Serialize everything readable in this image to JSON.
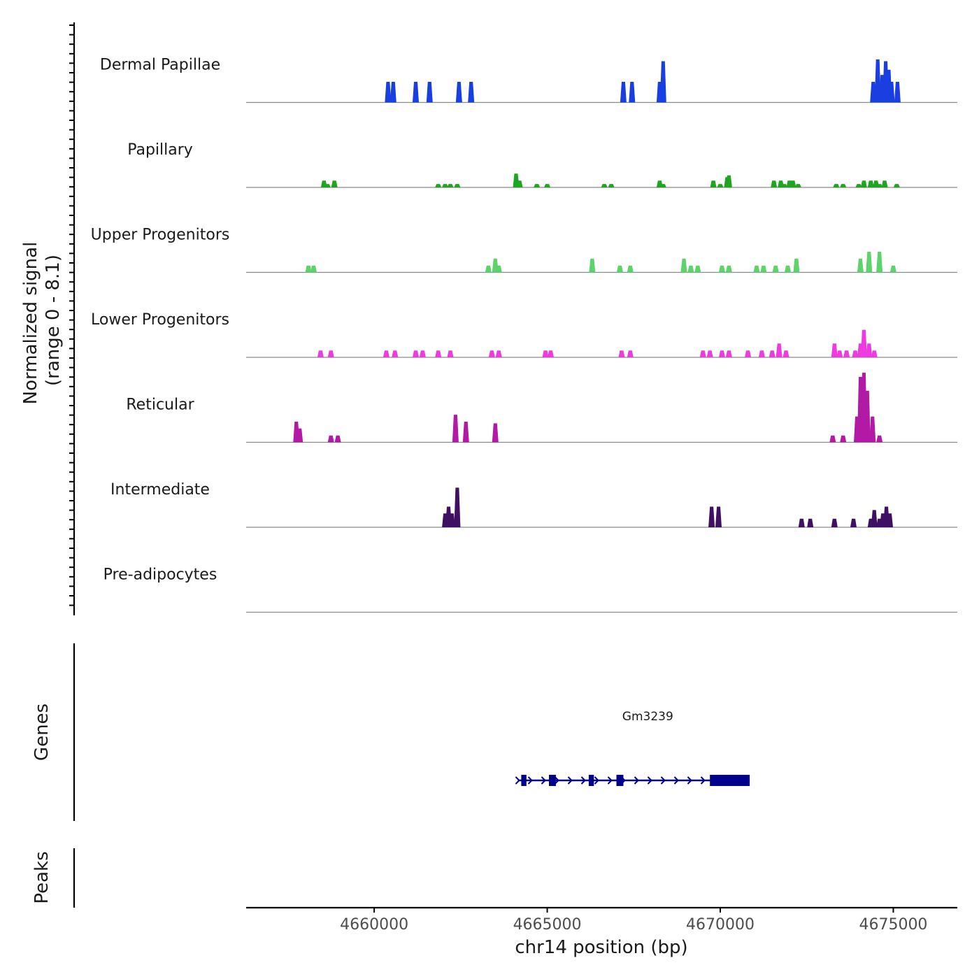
{
  "chart_data": {
    "type": "area",
    "title": "",
    "ylabel": "Normalized signal",
    "ylabel_range": "(range 0 - 8.1)",
    "ylim": [
      0,
      8.1
    ],
    "xlabel": "chr14 position (bp)",
    "xlim": [
      4656300,
      4676850
    ],
    "x_ticks": [
      4660000,
      4665000,
      4670000,
      4675000
    ],
    "x_tick_labels": [
      "4660000",
      "4665000",
      "4670000",
      "4675000"
    ],
    "series": [
      {
        "name": "Dermal Papillae",
        "color": "#1a3fe0",
        "peaks": [
          {
            "x": 4660400,
            "y": 2.4
          },
          {
            "x": 4660550,
            "y": 2.4
          },
          {
            "x": 4661200,
            "y": 2.4
          },
          {
            "x": 4661600,
            "y": 2.4
          },
          {
            "x": 4662450,
            "y": 2.4
          },
          {
            "x": 4662800,
            "y": 2.4
          },
          {
            "x": 4667200,
            "y": 2.4
          },
          {
            "x": 4667450,
            "y": 2.4
          },
          {
            "x": 4668250,
            "y": 2.4
          },
          {
            "x": 4668350,
            "y": 4.8
          },
          {
            "x": 4674420,
            "y": 2.4
          },
          {
            "x": 4674550,
            "y": 5.0
          },
          {
            "x": 4674680,
            "y": 3.2
          },
          {
            "x": 4674780,
            "y": 4.8
          },
          {
            "x": 4674870,
            "y": 3.8
          },
          {
            "x": 4674950,
            "y": 2.4
          },
          {
            "x": 4675120,
            "y": 2.4
          }
        ]
      },
      {
        "name": "Papillary",
        "color": "#1fa51f",
        "peaks": [
          {
            "x": 4658550,
            "y": 0.8
          },
          {
            "x": 4658650,
            "y": 0.4
          },
          {
            "x": 4658850,
            "y": 0.8
          },
          {
            "x": 4661850,
            "y": 0.4
          },
          {
            "x": 4662050,
            "y": 0.4
          },
          {
            "x": 4662200,
            "y": 0.4
          },
          {
            "x": 4662400,
            "y": 0.4
          },
          {
            "x": 4664100,
            "y": 1.6
          },
          {
            "x": 4664200,
            "y": 0.8
          },
          {
            "x": 4664700,
            "y": 0.4
          },
          {
            "x": 4665000,
            "y": 0.4
          },
          {
            "x": 4666650,
            "y": 0.4
          },
          {
            "x": 4666850,
            "y": 0.4
          },
          {
            "x": 4668250,
            "y": 0.8
          },
          {
            "x": 4668350,
            "y": 0.4
          },
          {
            "x": 4669800,
            "y": 0.8
          },
          {
            "x": 4670000,
            "y": 0.4
          },
          {
            "x": 4670200,
            "y": 1.2
          },
          {
            "x": 4670250,
            "y": 1.4
          },
          {
            "x": 4671550,
            "y": 0.8
          },
          {
            "x": 4671750,
            "y": 0.8
          },
          {
            "x": 4671850,
            "y": 0.4
          },
          {
            "x": 4672000,
            "y": 0.8
          },
          {
            "x": 4672100,
            "y": 0.8
          },
          {
            "x": 4672250,
            "y": 0.4
          },
          {
            "x": 4673350,
            "y": 0.4
          },
          {
            "x": 4673550,
            "y": 0.4
          },
          {
            "x": 4674000,
            "y": 0.4
          },
          {
            "x": 4674150,
            "y": 0.8
          },
          {
            "x": 4674350,
            "y": 0.8
          },
          {
            "x": 4674500,
            "y": 0.8
          },
          {
            "x": 4674600,
            "y": 0.4
          },
          {
            "x": 4674750,
            "y": 0.8
          },
          {
            "x": 4675100,
            "y": 0.4
          }
        ]
      },
      {
        "name": "Upper Progenitors",
        "color": "#5ed36b",
        "peaks": [
          {
            "x": 4658100,
            "y": 0.8
          },
          {
            "x": 4658250,
            "y": 0.8
          },
          {
            "x": 4663300,
            "y": 0.8
          },
          {
            "x": 4663500,
            "y": 1.6
          },
          {
            "x": 4663600,
            "y": 0.8
          },
          {
            "x": 4666300,
            "y": 1.6
          },
          {
            "x": 4667100,
            "y": 0.8
          },
          {
            "x": 4667400,
            "y": 0.8
          },
          {
            "x": 4668950,
            "y": 1.6
          },
          {
            "x": 4669150,
            "y": 0.8
          },
          {
            "x": 4669350,
            "y": 0.8
          },
          {
            "x": 4670050,
            "y": 0.8
          },
          {
            "x": 4670250,
            "y": 0.8
          },
          {
            "x": 4671050,
            "y": 0.8
          },
          {
            "x": 4671250,
            "y": 0.8
          },
          {
            "x": 4671600,
            "y": 0.8
          },
          {
            "x": 4671950,
            "y": 0.8
          },
          {
            "x": 4672200,
            "y": 1.6
          },
          {
            "x": 4674050,
            "y": 1.6
          },
          {
            "x": 4674300,
            "y": 2.4
          },
          {
            "x": 4674600,
            "y": 2.4
          },
          {
            "x": 4675000,
            "y": 0.8
          }
        ]
      },
      {
        "name": "Lower Progenitors",
        "color": "#ee3ae0",
        "peaks": [
          {
            "x": 4658450,
            "y": 0.8
          },
          {
            "x": 4658750,
            "y": 0.8
          },
          {
            "x": 4660350,
            "y": 0.8
          },
          {
            "x": 4660600,
            "y": 0.8
          },
          {
            "x": 4661200,
            "y": 0.8
          },
          {
            "x": 4661400,
            "y": 0.8
          },
          {
            "x": 4661850,
            "y": 0.8
          },
          {
            "x": 4662200,
            "y": 0.8
          },
          {
            "x": 4663400,
            "y": 0.8
          },
          {
            "x": 4663600,
            "y": 0.8
          },
          {
            "x": 4664950,
            "y": 0.8
          },
          {
            "x": 4665100,
            "y": 0.8
          },
          {
            "x": 4667150,
            "y": 0.8
          },
          {
            "x": 4667400,
            "y": 0.8
          },
          {
            "x": 4669500,
            "y": 0.8
          },
          {
            "x": 4669700,
            "y": 0.8
          },
          {
            "x": 4670050,
            "y": 0.8
          },
          {
            "x": 4670250,
            "y": 0.8
          },
          {
            "x": 4670800,
            "y": 0.8
          },
          {
            "x": 4671200,
            "y": 0.8
          },
          {
            "x": 4671500,
            "y": 0.8
          },
          {
            "x": 4671700,
            "y": 1.6
          },
          {
            "x": 4671900,
            "y": 0.8
          },
          {
            "x": 4673300,
            "y": 1.6
          },
          {
            "x": 4673450,
            "y": 0.8
          },
          {
            "x": 4673650,
            "y": 0.8
          },
          {
            "x": 4673900,
            "y": 0.8
          },
          {
            "x": 4674050,
            "y": 1.6
          },
          {
            "x": 4674150,
            "y": 3.2
          },
          {
            "x": 4674300,
            "y": 1.6
          },
          {
            "x": 4674450,
            "y": 0.8
          }
        ]
      },
      {
        "name": "Reticular",
        "color": "#b21aa6",
        "peaks": [
          {
            "x": 4657750,
            "y": 2.4
          },
          {
            "x": 4657850,
            "y": 1.6
          },
          {
            "x": 4658750,
            "y": 0.8
          },
          {
            "x": 4658950,
            "y": 0.8
          },
          {
            "x": 4662350,
            "y": 3.2
          },
          {
            "x": 4662650,
            "y": 2.4
          },
          {
            "x": 4663500,
            "y": 2.2
          },
          {
            "x": 4673250,
            "y": 0.8
          },
          {
            "x": 4673550,
            "y": 0.8
          },
          {
            "x": 4673950,
            "y": 3.0
          },
          {
            "x": 4674050,
            "y": 7.6
          },
          {
            "x": 4674150,
            "y": 8.1
          },
          {
            "x": 4674250,
            "y": 6.0
          },
          {
            "x": 4674400,
            "y": 3.0
          },
          {
            "x": 4674600,
            "y": 0.8
          }
        ]
      },
      {
        "name": "Intermediate",
        "color": "#3f0f63",
        "peaks": [
          {
            "x": 4662050,
            "y": 1.6
          },
          {
            "x": 4662150,
            "y": 2.4
          },
          {
            "x": 4662250,
            "y": 1.6
          },
          {
            "x": 4662400,
            "y": 4.6
          },
          {
            "x": 4669750,
            "y": 2.4
          },
          {
            "x": 4669950,
            "y": 2.4
          },
          {
            "x": 4672350,
            "y": 1.0
          },
          {
            "x": 4672600,
            "y": 1.0
          },
          {
            "x": 4673300,
            "y": 1.0
          },
          {
            "x": 4673850,
            "y": 1.0
          },
          {
            "x": 4674350,
            "y": 1.0
          },
          {
            "x": 4674450,
            "y": 2.0
          },
          {
            "x": 4674600,
            "y": 1.0
          },
          {
            "x": 4674700,
            "y": 1.6
          },
          {
            "x": 4674800,
            "y": 2.4
          },
          {
            "x": 4674900,
            "y": 1.6
          }
        ]
      },
      {
        "name": "Pre-adipocytes",
        "color": "#2a1a4a",
        "peaks": []
      }
    ],
    "genes_track": {
      "label": "Genes",
      "genes": [
        {
          "name": "Gm3239",
          "strand": "+",
          "start": 4664150,
          "end": 4670850,
          "color": "#00008b",
          "exons": [
            [
              4664250,
              4664400
            ],
            [
              4665050,
              4665250
            ],
            [
              4666200,
              4666350
            ],
            [
              4667000,
              4667200
            ],
            [
              4669700,
              4670850
            ]
          ]
        }
      ]
    },
    "peaks_track": {
      "label": "Peaks",
      "peaks": []
    }
  }
}
